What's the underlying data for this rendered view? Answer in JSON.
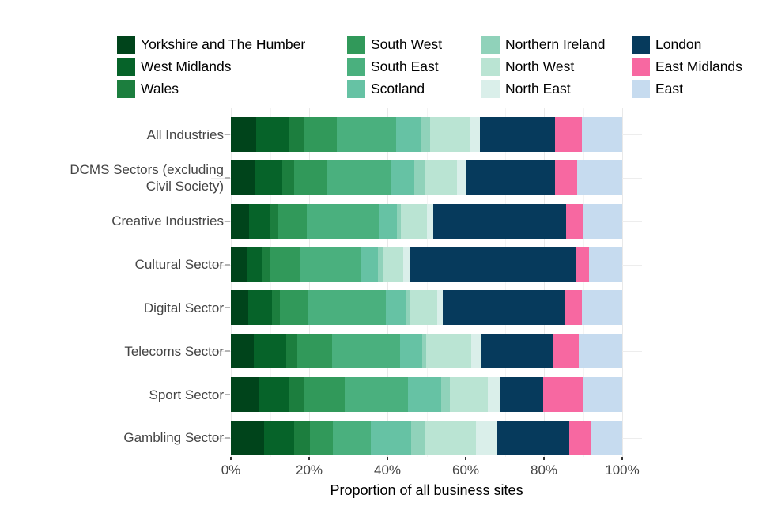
{
  "chart_data": {
    "type": "bar",
    "stacked": true,
    "orientation": "horizontal",
    "title": "",
    "xlabel": "Proportion of all business sites",
    "ylabel": "",
    "xlim": [
      0,
      100
    ],
    "x_ticks": [
      "0%",
      "20%",
      "40%",
      "60%",
      "80%",
      "100%"
    ],
    "grid": true,
    "legend_position": "top",
    "legend_columns": 4,
    "categories": [
      "All Industries",
      "DCMS Sectors (excluding\nCivil Society)",
      "Creative Industries",
      "Cultural Sector",
      "Digital Sector",
      "Telecoms Sector",
      "Sport Sector",
      "Gambling Sector"
    ],
    "series": [
      {
        "name": "Yorkshire and The Humber",
        "color": "#00441b",
        "values": [
          6.5,
          6.2,
          4.6,
          4.0,
          4.4,
          5.9,
          7.1,
          8.5
        ]
      },
      {
        "name": "West Midlands",
        "color": "#066329",
        "values": [
          8.4,
          6.9,
          5.6,
          3.8,
          6.1,
          8.3,
          7.6,
          7.6
        ]
      },
      {
        "name": "Wales",
        "color": "#1c7e3e",
        "values": [
          3.6,
          3.0,
          1.9,
          2.4,
          2.0,
          2.8,
          3.9,
          4.2
        ]
      },
      {
        "name": "South West",
        "color": "#31995a",
        "values": [
          8.5,
          8.5,
          7.2,
          7.4,
          7.2,
          8.8,
          10.4,
          5.7
        ]
      },
      {
        "name": "South East",
        "color": "#4ab07e",
        "values": [
          15.2,
          16.3,
          18.5,
          15.5,
          19.9,
          17.5,
          16.2,
          9.8
        ]
      },
      {
        "name": "Scotland",
        "color": "#66c2a4",
        "values": [
          6.4,
          5.9,
          4.6,
          4.4,
          5.1,
          5.6,
          8.6,
          10.2
        ]
      },
      {
        "name": "Northern Ireland",
        "color": "#90d2ba",
        "values": [
          2.4,
          2.9,
          1.1,
          1.3,
          1.0,
          1.0,
          2.2,
          3.6
        ]
      },
      {
        "name": "North West",
        "color": "#bae4d3",
        "values": [
          10.1,
          8.1,
          6.7,
          5.2,
          7.1,
          11.5,
          9.6,
          13.1
        ]
      },
      {
        "name": "North East",
        "color": "#daefea",
        "values": [
          2.5,
          2.2,
          1.5,
          1.6,
          1.4,
          2.4,
          3.0,
          5.1
        ]
      },
      {
        "name": "London",
        "color": "#063a5c",
        "values": [
          19.2,
          22.9,
          33.9,
          42.7,
          31.0,
          18.7,
          11.2,
          18.7
        ]
      },
      {
        "name": "East Midlands",
        "color": "#f768a1",
        "values": [
          6.9,
          5.6,
          4.4,
          3.2,
          4.5,
          6.3,
          10.3,
          5.5
        ]
      },
      {
        "name": "East",
        "color": "#c6dbef",
        "values": [
          10.3,
          11.5,
          10.0,
          8.5,
          10.3,
          11.2,
          9.9,
          8.0
        ]
      }
    ]
  }
}
